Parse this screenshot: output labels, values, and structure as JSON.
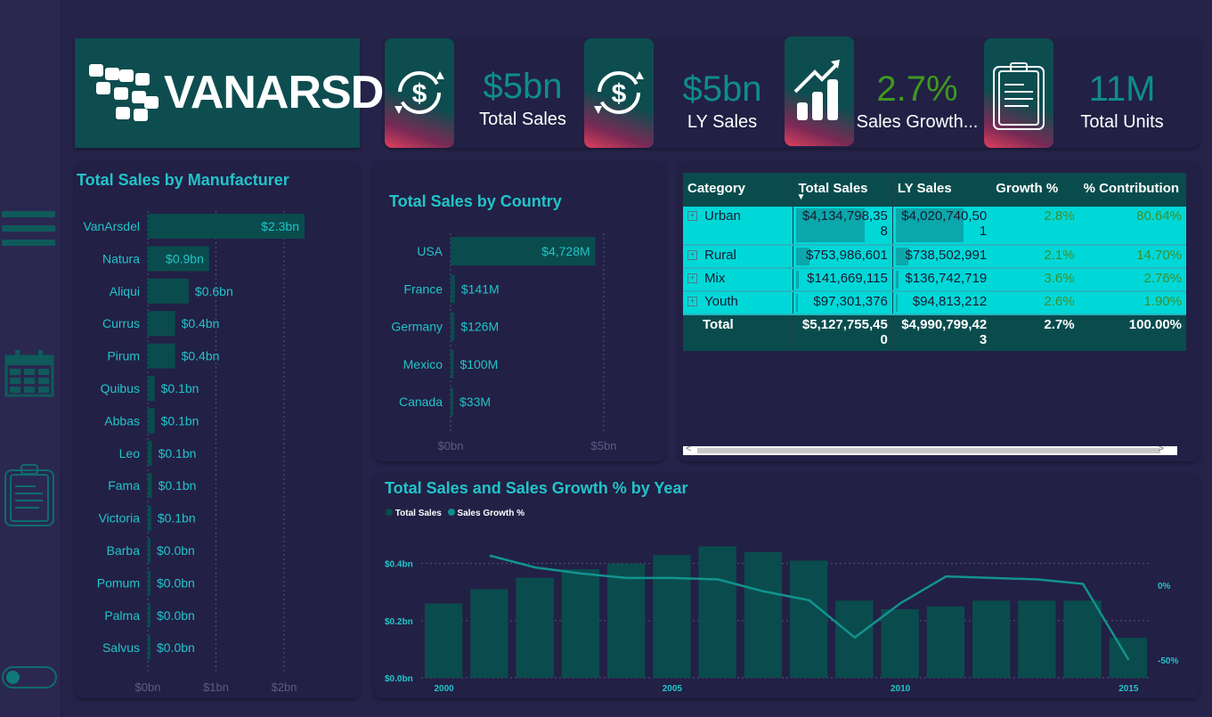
{
  "brand": {
    "name": "VANARSDEL"
  },
  "kpis": [
    {
      "value": "$5bn",
      "label": "Total Sales",
      "icon": "dollar-refresh-icon",
      "color": "#0e8d8b"
    },
    {
      "value": "$5bn",
      "label": "LY Sales",
      "icon": "dollar-refresh-icon",
      "color": "#0e8d8b"
    },
    {
      "value": "2.7%",
      "label": "Sales Growth...",
      "icon": "growth-chart-icon",
      "color": "#3e9a1e"
    },
    {
      "value": "11M",
      "label": "Total Units",
      "icon": "clipboard-icon",
      "color": "#0e8d8b"
    }
  ],
  "sidebar": {
    "icons": [
      "hamburger-menu-icon",
      "calendar-icon",
      "clipboard-icon"
    ]
  },
  "manufacturer": {
    "title": "Total Sales by Manufacturer",
    "chart_data": {
      "type": "bar",
      "orientation": "horizontal",
      "title": "Total Sales by Manufacturer",
      "categories": [
        "VanArsdel",
        "Natura",
        "Aliqui",
        "Currus",
        "Pirum",
        "Quibus",
        "Abbas",
        "Leo",
        "Fama",
        "Victoria",
        "Barba",
        "Pomum",
        "Palma",
        "Salvus"
      ],
      "values": [
        2.3,
        0.9,
        0.6,
        0.4,
        0.4,
        0.1,
        0.1,
        0.06,
        0.06,
        0.05,
        0.03,
        0.03,
        0.02,
        0.02
      ],
      "labels": [
        "$2.3bn",
        "$0.9bn",
        "$0.6bn",
        "$0.4bn",
        "$0.4bn",
        "$0.1bn",
        "$0.1bn",
        "$0.1bn",
        "$0.1bn",
        "$0.1bn",
        "$0.0bn",
        "$0.0bn",
        "$0.0bn",
        "$0.0bn"
      ],
      "xticks": [
        "$0bn",
        "$1bn",
        "$2bn"
      ],
      "xlim": [
        0,
        2.3
      ]
    }
  },
  "country": {
    "title": "Total Sales by Country",
    "chart_data": {
      "type": "bar",
      "orientation": "horizontal",
      "title": "Total Sales by Country",
      "categories": [
        "USA",
        "France",
        "Germany",
        "Mexico",
        "Canada"
      ],
      "values": [
        4728,
        141,
        126,
        100,
        33
      ],
      "labels": [
        "$4,728M",
        "$141M",
        "$126M",
        "$100M",
        "$33M"
      ],
      "xticks": [
        "$0bn",
        "$5bn"
      ],
      "xlim": [
        0,
        5000
      ]
    }
  },
  "matrix": {
    "columns": [
      "Category",
      "Total Sales",
      "LY Sales",
      "Growth %",
      "% Contribution"
    ],
    "rows": [
      {
        "category": "Urban",
        "total": "$4,134,798,358",
        "ly": "$4,020,740,501",
        "growth": "2.8%",
        "contribution": "80.64%",
        "total_frac": 0.81,
        "ly_frac": 0.81
      },
      {
        "category": "Rural",
        "total": "$753,986,601",
        "ly": "$738,502,991",
        "growth": "2.1%",
        "contribution": "14.70%",
        "total_frac": 0.15,
        "ly_frac": 0.15
      },
      {
        "category": "Mix",
        "total": "$141,669,115",
        "ly": "$136,742,719",
        "growth": "3.6%",
        "contribution": "2.76%",
        "total_frac": 0.03,
        "ly_frac": 0.03
      },
      {
        "category": "Youth",
        "total": "$97,301,376",
        "ly": "$94,813,212",
        "growth": "2.6%",
        "contribution": "1.90%",
        "total_frac": 0.02,
        "ly_frac": 0.02
      }
    ],
    "total": {
      "label": "Total",
      "total": "$5,127,755,450",
      "ly": "$4,990,799,423",
      "growth": "2.7%",
      "contribution": "100.00%"
    }
  },
  "year": {
    "title": "Total Sales and Sales Growth % by Year",
    "legend": [
      "Total Sales",
      "Sales Growth %"
    ],
    "chart_data": {
      "type": "bar-line combo",
      "title": "Total Sales and Sales Growth % by Year",
      "x": [
        2000,
        2001,
        2002,
        2003,
        2004,
        2005,
        2006,
        2007,
        2008,
        2009,
        2010,
        2011,
        2012,
        2013,
        2014,
        2015
      ],
      "series": [
        {
          "name": "Total Sales",
          "type": "bar",
          "axis": "left",
          "values": [
            0.26,
            0.31,
            0.35,
            0.38,
            0.4,
            0.43,
            0.46,
            0.44,
            0.41,
            0.27,
            0.24,
            0.25,
            0.27,
            0.27,
            0.27,
            0.14
          ]
        },
        {
          "name": "Sales Growth %",
          "type": "line",
          "axis": "right",
          "values": [
            null,
            0.2,
            0.12,
            0.08,
            0.05,
            0.05,
            0.04,
            -0.04,
            -0.1,
            -0.35,
            -0.12,
            0.06,
            0.05,
            0.04,
            0.01,
            -0.5
          ]
        }
      ],
      "xticks": [
        "2000",
        "2005",
        "2010",
        "2015"
      ],
      "yticks_left": [
        "$0.0bn",
        "$0.2bn",
        "$0.4bn"
      ],
      "ylim_left": [
        0,
        0.48
      ],
      "yticks_right": [
        "0%",
        "-50%"
      ],
      "ylim_right": [
        -0.62,
        0.3
      ]
    }
  },
  "colors": {
    "background": "#252349",
    "accent": "#0e8d8b",
    "title": "#22c4c9",
    "bar": "#0a4c4d",
    "highlight": "#00d8d8",
    "growth": "#3e9a1e"
  }
}
